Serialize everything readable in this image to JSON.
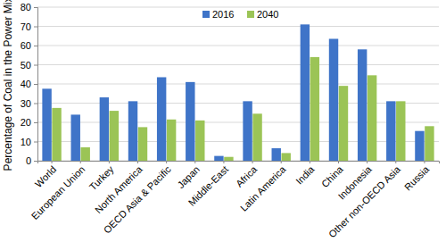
{
  "chart_data": {
    "type": "bar",
    "y_label": "Percentage of Coal in the Power Mix",
    "categories": [
      "World",
      "European Union",
      "Turkey",
      "North America",
      "OECD  Asia & Pacific",
      "Japan",
      "Middle-East",
      "Africa",
      "Latin America",
      "India",
      "China",
      "Indonesia",
      "Other non-OECD Asia",
      "Russia"
    ],
    "series": [
      {
        "name": "2016",
        "color": "#3f74c8",
        "values": [
          37.5,
          24,
          33,
          31,
          43.5,
          41,
          2.5,
          31,
          6.5,
          71,
          63.5,
          58,
          31,
          15.5
        ]
      },
      {
        "name": "2040",
        "color": "#9bc456",
        "values": [
          27.5,
          7,
          26,
          17.5,
          21.5,
          21,
          2,
          24.5,
          4,
          54,
          39,
          44.5,
          31,
          18
        ]
      }
    ],
    "ylim": [
      0,
      80
    ],
    "yticks": [
      0,
      10,
      20,
      30,
      40,
      50,
      60,
      70,
      80
    ],
    "grid": true,
    "legend": "top"
  }
}
